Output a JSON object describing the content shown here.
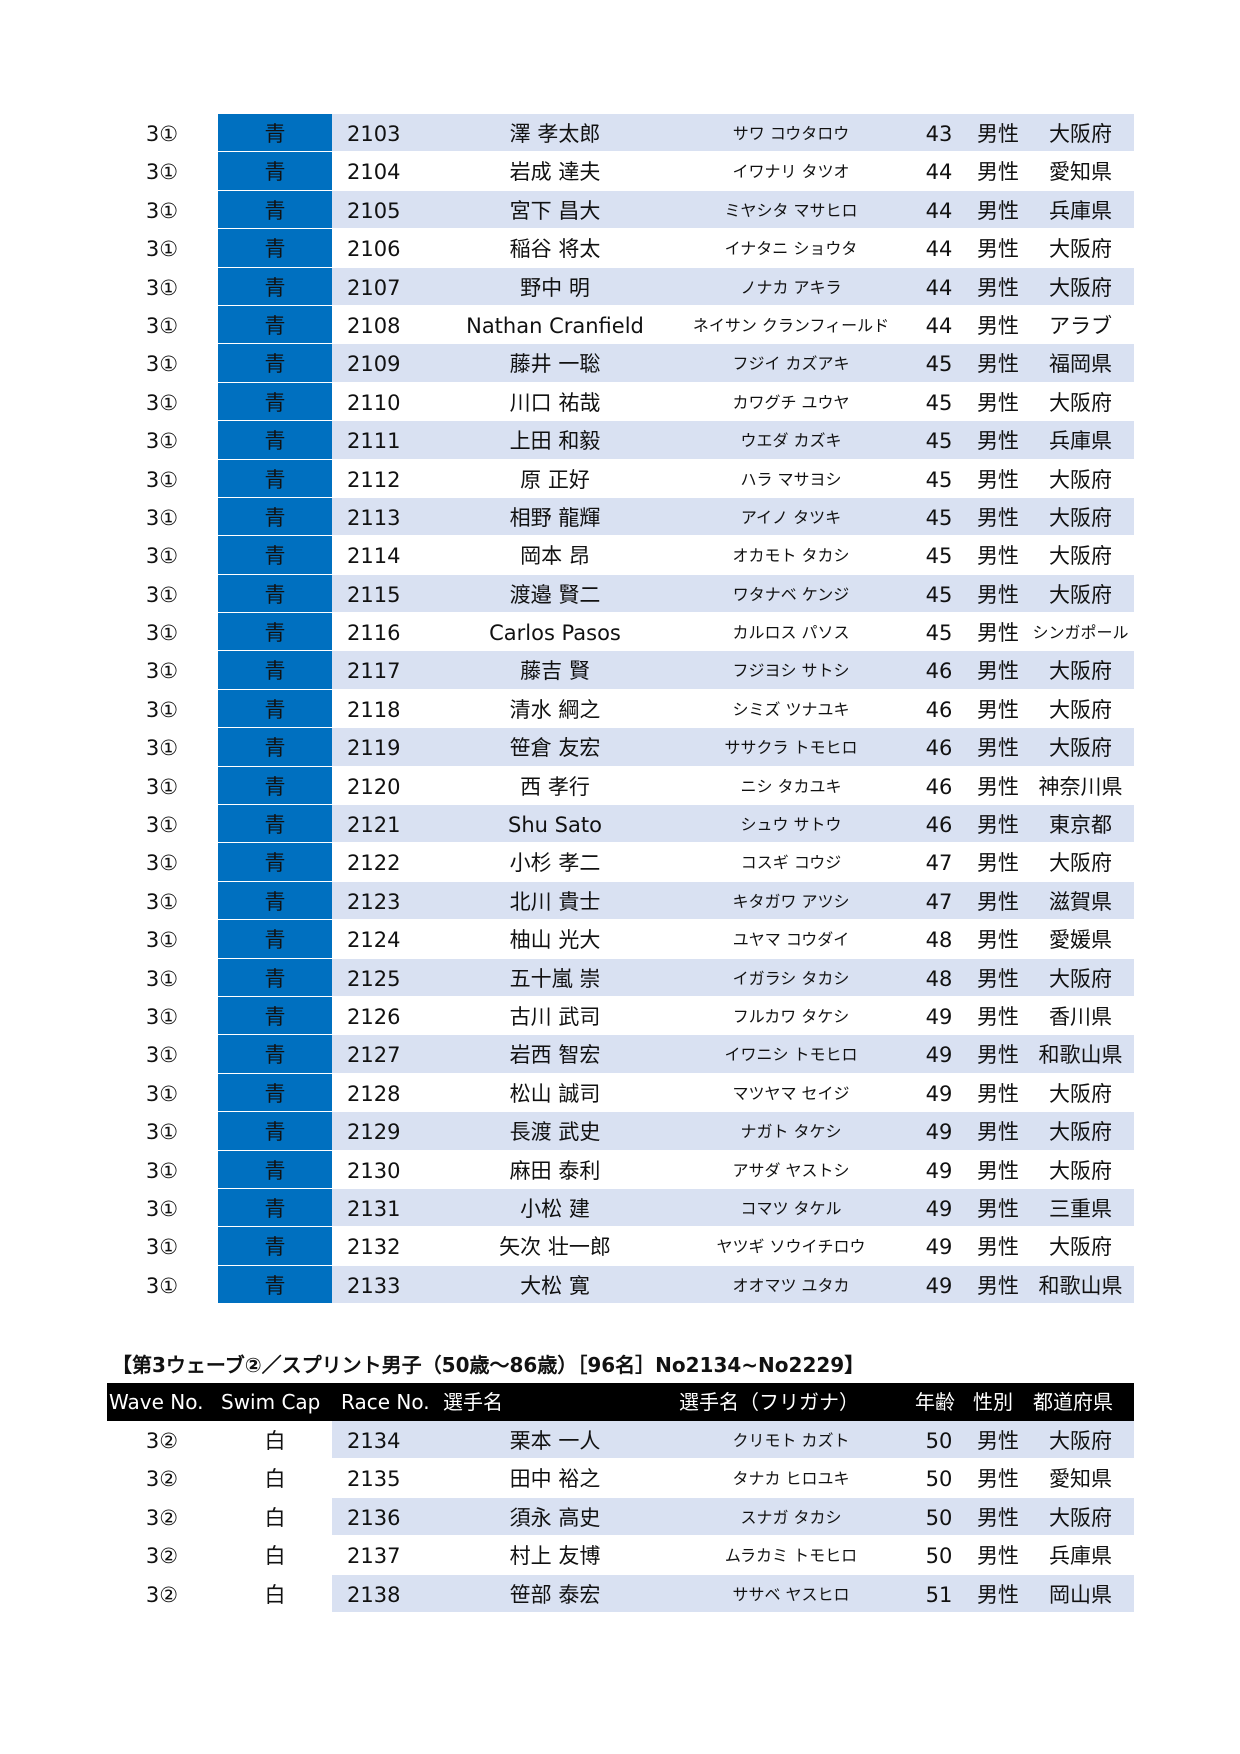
{
  "colors": {
    "cap_blue": "#0070c0",
    "row_band": "#d9e1f2",
    "header_bg": "#000000"
  },
  "table1": {
    "rows": [
      [
        "3①",
        "青",
        "2103",
        "澤 孝太郎",
        "サワ コウタロウ",
        "43",
        "男性",
        "大阪府"
      ],
      [
        "3①",
        "青",
        "2104",
        "岩成 達夫",
        "イワナリ タツオ",
        "44",
        "男性",
        "愛知県"
      ],
      [
        "3①",
        "青",
        "2105",
        "宮下 昌大",
        "ミヤシタ マサヒロ",
        "44",
        "男性",
        "兵庫県"
      ],
      [
        "3①",
        "青",
        "2106",
        "稲谷 将太",
        "イナタニ ショウタ",
        "44",
        "男性",
        "大阪府"
      ],
      [
        "3①",
        "青",
        "2107",
        "野中 明",
        "ノナカ アキラ",
        "44",
        "男性",
        "大阪府"
      ],
      [
        "3①",
        "青",
        "2108",
        "Nathan Cranfield",
        "ネイサン クランフィールド",
        "44",
        "男性",
        "アラブ"
      ],
      [
        "3①",
        "青",
        "2109",
        "藤井 一聡",
        "フジイ カズアキ",
        "45",
        "男性",
        "福岡県"
      ],
      [
        "3①",
        "青",
        "2110",
        "川口 祐哉",
        "カワグチ ユウヤ",
        "45",
        "男性",
        "大阪府"
      ],
      [
        "3①",
        "青",
        "2111",
        "上田 和毅",
        "ウエダ カズキ",
        "45",
        "男性",
        "兵庫県"
      ],
      [
        "3①",
        "青",
        "2112",
        "原 正好",
        "ハラ マサヨシ",
        "45",
        "男性",
        "大阪府"
      ],
      [
        "3①",
        "青",
        "2113",
        "相野 龍輝",
        "アイノ タツキ",
        "45",
        "男性",
        "大阪府"
      ],
      [
        "3①",
        "青",
        "2114",
        "岡本 昂",
        "オカモト タカシ",
        "45",
        "男性",
        "大阪府"
      ],
      [
        "3①",
        "青",
        "2115",
        "渡邉 賢二",
        "ワタナベ ケンジ",
        "45",
        "男性",
        "大阪府"
      ],
      [
        "3①",
        "青",
        "2116",
        "Carlos Pasos",
        "カルロス パソス",
        "45",
        "男性",
        "シンガポール"
      ],
      [
        "3①",
        "青",
        "2117",
        "藤吉 賢",
        "フジヨシ サトシ",
        "46",
        "男性",
        "大阪府"
      ],
      [
        "3①",
        "青",
        "2118",
        "清水 綱之",
        "シミズ ツナユキ",
        "46",
        "男性",
        "大阪府"
      ],
      [
        "3①",
        "青",
        "2119",
        "笹倉 友宏",
        "ササクラ トモヒロ",
        "46",
        "男性",
        "大阪府"
      ],
      [
        "3①",
        "青",
        "2120",
        "西 孝行",
        "ニシ タカユキ",
        "46",
        "男性",
        "神奈川県"
      ],
      [
        "3①",
        "青",
        "2121",
        "Shu Sato",
        "シュウ サトウ",
        "46",
        "男性",
        "東京都"
      ],
      [
        "3①",
        "青",
        "2122",
        "小杉 孝二",
        "コスギ コウジ",
        "47",
        "男性",
        "大阪府"
      ],
      [
        "3①",
        "青",
        "2123",
        "北川 貴士",
        "キタガワ アツシ",
        "47",
        "男性",
        "滋賀県"
      ],
      [
        "3①",
        "青",
        "2124",
        "柚山 光大",
        "ユヤマ コウダイ",
        "48",
        "男性",
        "愛媛県"
      ],
      [
        "3①",
        "青",
        "2125",
        "五十嵐 崇",
        "イガラシ タカシ",
        "48",
        "男性",
        "大阪府"
      ],
      [
        "3①",
        "青",
        "2126",
        "古川 武司",
        "フルカワ タケシ",
        "49",
        "男性",
        "香川県"
      ],
      [
        "3①",
        "青",
        "2127",
        "岩西 智宏",
        "イワニシ トモヒロ",
        "49",
        "男性",
        "和歌山県"
      ],
      [
        "3①",
        "青",
        "2128",
        "松山 誠司",
        "マツヤマ セイジ",
        "49",
        "男性",
        "大阪府"
      ],
      [
        "3①",
        "青",
        "2129",
        "長渡 武史",
        "ナガト タケシ",
        "49",
        "男性",
        "大阪府"
      ],
      [
        "3①",
        "青",
        "2130",
        "麻田 泰利",
        "アサダ ヤストシ",
        "49",
        "男性",
        "大阪府"
      ],
      [
        "3①",
        "青",
        "2131",
        "小松 建",
        "コマツ タケル",
        "49",
        "男性",
        "三重県"
      ],
      [
        "3①",
        "青",
        "2132",
        "矢次 壮一郎",
        "ヤツギ ソウイチロウ",
        "49",
        "男性",
        "大阪府"
      ],
      [
        "3①",
        "青",
        "2133",
        "大松 寛",
        "オオマツ ユタカ",
        "49",
        "男性",
        "和歌山県"
      ]
    ]
  },
  "section2": {
    "heading": "【第3ウェーブ②／スプリント男子（50歳～86歳）［96名］No2134~No2229】",
    "headers": [
      "Wave No.",
      "Swim Cap",
      "Race No.",
      "選手名",
      "選手名（フリガナ）",
      "年齢",
      "性別",
      "都道府県"
    ],
    "rows": [
      [
        "3②",
        "白",
        "2134",
        "栗本 一人",
        "クリモト カズト",
        "50",
        "男性",
        "大阪府"
      ],
      [
        "3②",
        "白",
        "2135",
        "田中 裕之",
        "タナカ ヒロユキ",
        "50",
        "男性",
        "愛知県"
      ],
      [
        "3②",
        "白",
        "2136",
        "須永 高史",
        "スナガ タカシ",
        "50",
        "男性",
        "大阪府"
      ],
      [
        "3②",
        "白",
        "2137",
        "村上 友博",
        "ムラカミ トモヒロ",
        "50",
        "男性",
        "兵庫県"
      ],
      [
        "3②",
        "白",
        "2138",
        "笹部 泰宏",
        "ササベ ヤスヒロ",
        "51",
        "男性",
        "岡山県"
      ]
    ]
  }
}
